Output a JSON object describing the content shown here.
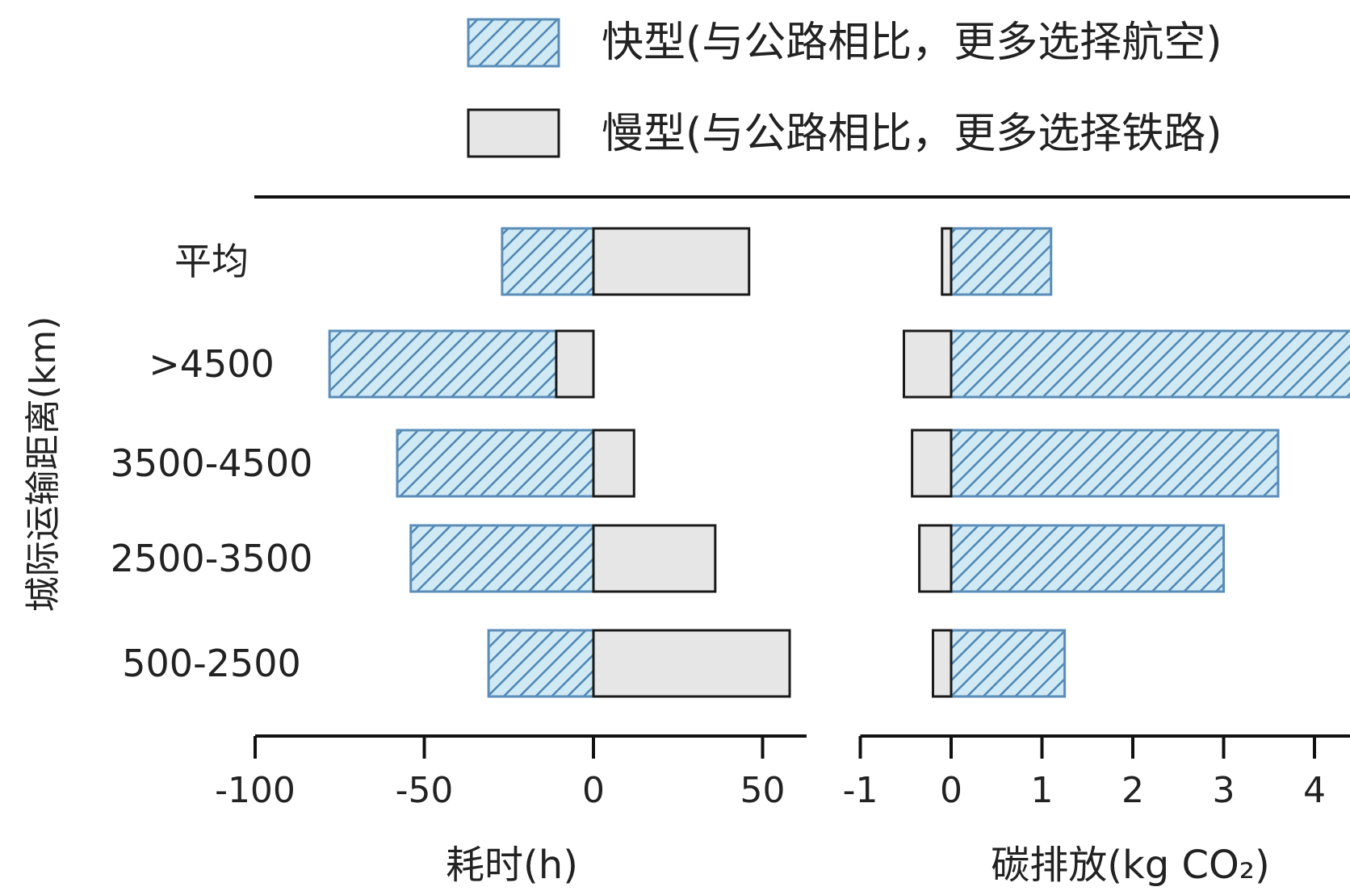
{
  "colors": {
    "fast_fill": "#cfe9f5",
    "fast_hatch": "#4f86b3",
    "fast_border": "#5b8db8",
    "slow_fill": "#e6e6e6",
    "slow_border": "#1a1a1a",
    "axis": "#111111"
  },
  "legend": {
    "fast_label": "快型(与公路相比，更多选择航空)",
    "slow_label": "慢型(与公路相比，更多选择铁路)"
  },
  "chart_data": {
    "type": "bar",
    "orientation": "horizontal",
    "stacked_diverging": true,
    "ylabel": "城际运输距离(km)",
    "categories": [
      "平均",
      ">4500",
      "3500-4500",
      "2500-3500",
      "500-2500"
    ],
    "panels": [
      {
        "xlabel": "耗时(h)",
        "xlim": [
          -100,
          63
        ],
        "xticks": [
          -100,
          -50,
          0,
          50
        ],
        "tick_labels": [
          "-100",
          "-50",
          "0",
          "50"
        ],
        "series": [
          {
            "name": "快型(与公路相比，更多选择航空)",
            "key": "fast",
            "values": [
              -27,
              -78,
              -58,
              -54,
              -31
            ]
          },
          {
            "name": "慢型(与公路相比，更多选择铁路)",
            "key": "slow",
            "values": [
              46,
              -11,
              12,
              36,
              58
            ]
          }
        ]
      },
      {
        "xlabel": "碳排放(kg CO₂)",
        "xlim": [
          -1,
          4.5
        ],
        "xticks": [
          -1,
          0,
          1,
          2,
          3,
          4
        ],
        "tick_labels": [
          "-1",
          "0",
          "1",
          "2",
          "3",
          "4"
        ],
        "series": [
          {
            "name": "快型(与公路相比，更多选择航空)",
            "key": "fast",
            "values": [
              1.1,
              4.5,
              3.6,
              3.0,
              1.25
            ]
          },
          {
            "name": "慢型(与公路相比，更多选择铁路)",
            "key": "slow",
            "values": [
              -0.1,
              -0.52,
              -0.43,
              -0.35,
              -0.2
            ]
          }
        ]
      }
    ]
  }
}
